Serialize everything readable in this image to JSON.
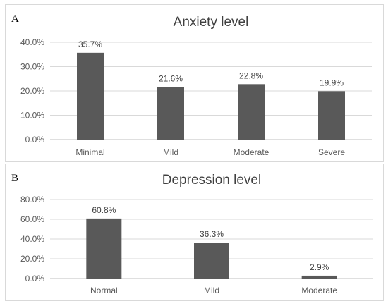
{
  "chart_data": [
    {
      "type": "bar",
      "panel": "A",
      "title": "Anxiety level",
      "categories": [
        "Minimal",
        "Mild",
        "Moderate",
        "Severe"
      ],
      "values": [
        35.7,
        21.6,
        22.8,
        19.9
      ],
      "data_labels": [
        "35.7%",
        "21.6%",
        "22.8%",
        "19.9%"
      ],
      "yticks": [
        "0.0%",
        "10.0%",
        "20.0%",
        "30.0%",
        "40.0%"
      ],
      "ylim": [
        0,
        40
      ],
      "grid": true,
      "bar_color": "#595959"
    },
    {
      "type": "bar",
      "panel": "B",
      "title": "Depression level",
      "categories": [
        "Normal",
        "Mild",
        "Moderate"
      ],
      "values": [
        60.8,
        36.3,
        2.9
      ],
      "data_labels": [
        "60.8%",
        "36.3%",
        "2.9%"
      ],
      "yticks": [
        "0.0%",
        "20.0%",
        "40.0%",
        "60.0%",
        "80.0%"
      ],
      "ylim": [
        0,
        80
      ],
      "grid": true,
      "bar_color": "#595959"
    }
  ]
}
